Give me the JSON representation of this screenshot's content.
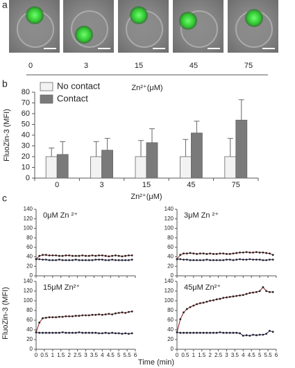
{
  "panel_a": {
    "label": "a",
    "concentrations": [
      "0",
      "3",
      "15",
      "45",
      "75"
    ],
    "axis_label": "Zn²⁺(μM)"
  },
  "panel_c": {
    "label": "c",
    "ylabel": "FluoZin-3 (MFI)",
    "xlabel": "Time (min)"
  },
  "chart_data": [
    {
      "type": "bar",
      "panel_label": "b",
      "ylabel": "FluoZin-3 (MFI)",
      "xlabel": "Zn²⁺(μM)",
      "categories": [
        "0",
        "3",
        "15",
        "45",
        "75"
      ],
      "series": [
        {
          "name": "No contact",
          "color": "#f2f2f2",
          "values": [
            20,
            20,
            20,
            20,
            20
          ],
          "errors": [
            8,
            14,
            15,
            16,
            17
          ]
        },
        {
          "name": "Contact",
          "color": "#7a7a7a",
          "values": [
            22,
            26,
            33,
            42,
            54
          ],
          "errors": [
            12,
            11,
            13,
            11,
            19
          ]
        }
      ],
      "ylim": [
        0,
        80
      ],
      "yticks": [
        0,
        10,
        20,
        30,
        40,
        50,
        60,
        70,
        80
      ],
      "legend": "top-left"
    },
    {
      "type": "line",
      "title": "0μM Zn ²⁺",
      "x": [
        0,
        0.2,
        0.4,
        0.6,
        0.8,
        1,
        1.2,
        1.4,
        1.6,
        1.8,
        2,
        2.2,
        2.4,
        2.6,
        2.8,
        3,
        3.2,
        3.4,
        3.6,
        3.8,
        4,
        4.2,
        4.4,
        4.6,
        4.8,
        5,
        5.2,
        5.4,
        5.6,
        5.8
      ],
      "series": [
        {
          "color": "#8b1a1a",
          "values": [
            35,
            42,
            44,
            44,
            43,
            43,
            43,
            42,
            42,
            43,
            43,
            42,
            42,
            42,
            43,
            42,
            42,
            43,
            42,
            43,
            43,
            42,
            41,
            42,
            43,
            42,
            41,
            42,
            43,
            43
          ]
        },
        {
          "color": "#1c1c6e",
          "values": [
            35,
            35,
            34,
            34,
            33,
            33,
            33,
            34,
            33,
            33,
            33,
            33,
            34,
            33,
            33,
            33,
            33,
            33,
            34,
            34,
            34,
            33,
            33,
            34,
            33,
            33,
            33,
            33,
            33,
            34
          ]
        }
      ],
      "xlim": [
        0,
        6
      ],
      "xticks": [
        0,
        0.5,
        1,
        1.5,
        2,
        2.5,
        3,
        3.5,
        4,
        4.5,
        5,
        5.5,
        6
      ],
      "ylim": [
        0,
        140
      ],
      "yticks": [
        0,
        20,
        40,
        60,
        80,
        100,
        120,
        140
      ]
    },
    {
      "type": "line",
      "title": "3μM Zn ²⁺",
      "x": [
        0,
        0.2,
        0.4,
        0.6,
        0.8,
        1,
        1.2,
        1.4,
        1.6,
        1.8,
        2,
        2.2,
        2.4,
        2.6,
        2.8,
        3,
        3.2,
        3.4,
        3.6,
        3.8,
        4,
        4.2,
        4.4,
        4.6,
        4.8,
        5,
        5.2,
        5.4,
        5.6,
        5.8
      ],
      "series": [
        {
          "color": "#8b1a1a",
          "values": [
            35,
            44,
            47,
            47,
            48,
            47,
            46,
            47,
            47,
            46,
            47,
            46,
            46,
            47,
            47,
            46,
            46,
            47,
            48,
            49,
            49,
            50,
            49,
            49,
            50,
            49,
            49,
            48,
            47,
            44
          ]
        },
        {
          "color": "#1c1c6e",
          "values": [
            35,
            35,
            34,
            34,
            33,
            33,
            33,
            33,
            33,
            34,
            33,
            33,
            33,
            33,
            33,
            34,
            34,
            33,
            34,
            35,
            34,
            34,
            35,
            34,
            34,
            34,
            33,
            33,
            34,
            34
          ]
        }
      ],
      "xlim": [
        0,
        6
      ],
      "xticks": [
        0,
        0.5,
        1,
        1.5,
        2,
        2.5,
        3,
        3.5,
        4,
        4.5,
        5,
        5.5,
        6
      ],
      "ylim": [
        0,
        140
      ],
      "yticks": [
        0,
        20,
        40,
        60,
        80,
        100,
        120,
        140
      ]
    },
    {
      "type": "line",
      "title": "15μM Zn²⁺",
      "x": [
        0,
        0.2,
        0.4,
        0.6,
        0.8,
        1,
        1.2,
        1.4,
        1.6,
        1.8,
        2,
        2.2,
        2.4,
        2.6,
        2.8,
        3,
        3.2,
        3.4,
        3.6,
        3.8,
        4,
        4.2,
        4.4,
        4.6,
        4.8,
        5,
        5.2,
        5.4,
        5.6,
        5.8
      ],
      "series": [
        {
          "color": "#8b1a1a",
          "values": [
            35,
            55,
            64,
            65,
            66,
            66,
            66,
            67,
            67,
            68,
            68,
            68,
            69,
            69,
            70,
            70,
            70,
            71,
            71,
            72,
            71,
            72,
            73,
            72,
            74,
            75,
            76,
            75,
            77,
            78
          ]
        },
        {
          "color": "#1c1c6e",
          "values": [
            35,
            34,
            34,
            34,
            34,
            34,
            34,
            34,
            35,
            34,
            34,
            34,
            34,
            35,
            34,
            34,
            34,
            34,
            34,
            33,
            33,
            34,
            33,
            34,
            33,
            33,
            32,
            33,
            32,
            33
          ]
        }
      ],
      "xlim": [
        0,
        6
      ],
      "xticks": [
        0,
        0.5,
        1,
        1.5,
        2,
        2.5,
        3,
        3.5,
        4,
        4.5,
        5,
        5.5,
        6
      ],
      "ylim": [
        0,
        140
      ],
      "yticks": [
        0,
        20,
        40,
        60,
        80,
        100,
        120,
        140
      ]
    },
    {
      "type": "line",
      "title": "45μM Zn²⁺",
      "x": [
        0,
        0.2,
        0.4,
        0.6,
        0.8,
        1,
        1.2,
        1.4,
        1.6,
        1.8,
        2,
        2.2,
        2.4,
        2.6,
        2.8,
        3,
        3.2,
        3.4,
        3.6,
        3.8,
        4,
        4.2,
        4.4,
        4.6,
        4.8,
        5,
        5.2,
        5.4,
        5.6,
        5.8
      ],
      "series": [
        {
          "color": "#8b1a1a",
          "values": [
            35,
            62,
            76,
            83,
            87,
            90,
            93,
            95,
            96,
            98,
            100,
            101,
            103,
            104,
            106,
            107,
            108,
            109,
            110,
            111,
            112,
            114,
            116,
            117,
            118,
            120,
            128,
            120,
            118,
            118
          ]
        },
        {
          "color": "#1c1c6e",
          "values": [
            35,
            34,
            34,
            34,
            34,
            34,
            34,
            34,
            34,
            34,
            34,
            34,
            34,
            35,
            34,
            34,
            34,
            34,
            34,
            33,
            28,
            29,
            28,
            30,
            29,
            30,
            30,
            32,
            38,
            36
          ]
        }
      ],
      "xlim": [
        0,
        6
      ],
      "xticks": [
        0,
        0.5,
        1,
        1.5,
        2,
        2.5,
        3,
        3.5,
        4,
        4.5,
        5,
        5.5,
        6
      ],
      "ylim": [
        0,
        140
      ],
      "yticks": [
        0,
        20,
        40,
        60,
        80,
        100,
        120,
        140
      ]
    }
  ]
}
